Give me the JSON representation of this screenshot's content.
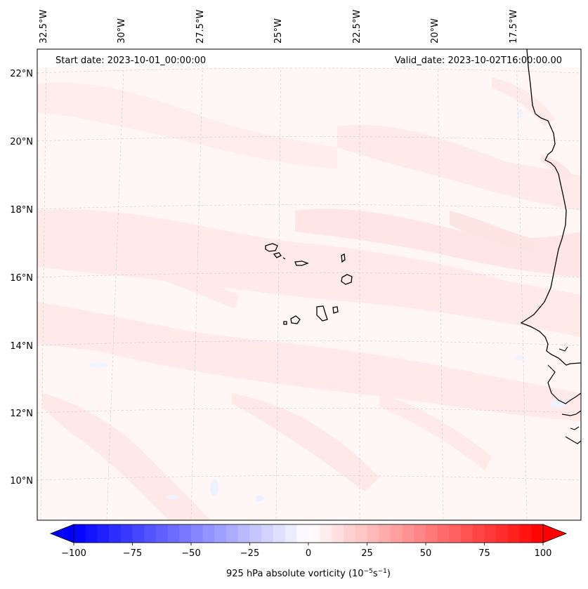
{
  "header": {
    "start_date": "Start date: 2023-10-01_00:00:00",
    "valid_date": "Valid_date: 2023-10-02T16:00:00.00"
  },
  "longitude_labels": [
    "32.5°W",
    "30°W",
    "27.5°W",
    "25°W",
    "22.5°W",
    "20°W",
    "17.5°W"
  ],
  "latitude_labels": [
    "22°N",
    "20°N",
    "18°N",
    "16°N",
    "14°N",
    "12°N",
    "10°N"
  ],
  "colorbar": {
    "label_prefix": "925 hPa absolute vorticity (10",
    "label_exp1": "−5",
    "label_mid": "s",
    "label_exp2": "−1",
    "label_suffix": ")",
    "ticks": [
      "−100",
      "−75",
      "−50",
      "−25",
      "0",
      "25",
      "50",
      "75",
      "100"
    ],
    "min": -100,
    "max": 100,
    "step": 5,
    "low_color": "#0000ff",
    "mid_color": "#ffffff",
    "high_color": "#ff0000"
  },
  "colors": {
    "background_field": "#fff6f6",
    "pink_band": "#ffe3e3",
    "light_pink": "#ffeeee",
    "blue_patch": "#f1f4ff",
    "coastline": "#000000",
    "gridline": "#cccccc"
  }
}
